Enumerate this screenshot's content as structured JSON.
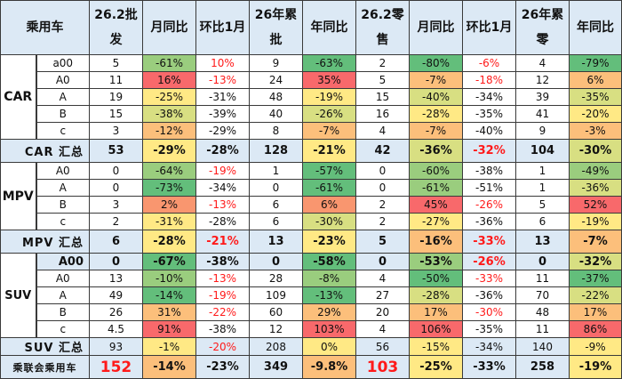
{
  "palette": {
    "G": "#63be7b",
    "g": "#9acd7e",
    "Y": "#d8df82",
    "y": "#ffe985",
    "o": "#fcbf7b",
    "O": "#f9966f",
    "R": "#f8696b",
    "header_bg": "#dce9f5",
    "red_text": "#ff1a1a"
  },
  "headers": [
    "乘用车",
    "26.2批发",
    "月同比",
    "环比1月",
    "26年累批",
    "年同比",
    "26.2零售",
    "月同比",
    "环比1月",
    "26年累零",
    "年同比"
  ],
  "groups": {
    "car": "CAR",
    "mpv": "MPV",
    "suv": "SUV"
  },
  "rows": [
    {
      "group": "car",
      "label": "a00",
      "cells": [
        [
          "5"
        ],
        [
          "-61%",
          "g"
        ],
        [
          "10%",
          "",
          "r"
        ],
        [
          "9"
        ],
        [
          "-63%",
          "G"
        ],
        [
          "2"
        ],
        [
          "-80%",
          "G"
        ],
        [
          "-6%",
          "",
          "r"
        ],
        [
          "4"
        ],
        [
          "-79%",
          "G"
        ]
      ]
    },
    {
      "group": "car",
      "label": "A0",
      "cells": [
        [
          "11"
        ],
        [
          "16%",
          "R"
        ],
        [
          "-13%",
          "",
          "r"
        ],
        [
          "24"
        ],
        [
          "35%",
          "R"
        ],
        [
          "5"
        ],
        [
          "-7%",
          "o"
        ],
        [
          "-18%",
          "",
          "r"
        ],
        [
          "12"
        ],
        [
          "6%",
          "o"
        ]
      ]
    },
    {
      "group": "car",
      "label": "A",
      "cells": [
        [
          "19"
        ],
        [
          "-25%",
          "y"
        ],
        [
          "-31%"
        ],
        [
          "48"
        ],
        [
          "-19%",
          "y"
        ],
        [
          "15"
        ],
        [
          "-40%",
          "Y"
        ],
        [
          "-34%"
        ],
        [
          "39"
        ],
        [
          "-35%",
          "Y"
        ]
      ]
    },
    {
      "group": "car",
      "label": "B",
      "cells": [
        [
          "15"
        ],
        [
          "-38%",
          "Y"
        ],
        [
          "-39%"
        ],
        [
          "40"
        ],
        [
          "-26%",
          "Y"
        ],
        [
          "16"
        ],
        [
          "-28%",
          "y"
        ],
        [
          "-35%"
        ],
        [
          "41"
        ],
        [
          "-20%",
          "y"
        ]
      ]
    },
    {
      "group": "car",
      "label": "c",
      "cells": [
        [
          "3"
        ],
        [
          "-12%",
          "o"
        ],
        [
          "-29%"
        ],
        [
          "8"
        ],
        [
          "-7%",
          "o"
        ],
        [
          "4"
        ],
        [
          "-7%",
          "o"
        ],
        [
          "-40%"
        ],
        [
          "9"
        ],
        [
          "-3%",
          "o"
        ]
      ]
    },
    {
      "summary": true,
      "bold": true,
      "label": "CAR 汇总",
      "cells": [
        [
          "53",
          "B"
        ],
        [
          "-29%",
          "y"
        ],
        [
          "-28%",
          "B"
        ],
        [
          "128",
          "B"
        ],
        [
          "-21%",
          "y"
        ],
        [
          "42",
          "B"
        ],
        [
          "-36%",
          "Y"
        ],
        [
          "-32%",
          "B",
          "r"
        ],
        [
          "104",
          "B"
        ],
        [
          "-30%",
          "Y"
        ]
      ]
    },
    {
      "group": "mpv",
      "label": "A0",
      "cells": [
        [
          "0"
        ],
        [
          "-64%",
          "g"
        ],
        [
          "-19%",
          "",
          "r"
        ],
        [
          "1"
        ],
        [
          "-57%",
          "G"
        ],
        [
          "0"
        ],
        [
          "-60%",
          "g"
        ],
        [
          "-38%"
        ],
        [
          "1"
        ],
        [
          "-49%",
          "g"
        ]
      ]
    },
    {
      "group": "mpv",
      "label": "A",
      "cells": [
        [
          "0"
        ],
        [
          "-73%",
          "G"
        ],
        [
          "-34%"
        ],
        [
          "0"
        ],
        [
          "-61%",
          "G"
        ],
        [
          "0"
        ],
        [
          "-61%",
          "g"
        ],
        [
          "-51%"
        ],
        [
          "1"
        ],
        [
          "-36%",
          "Y"
        ]
      ]
    },
    {
      "group": "mpv",
      "label": "B",
      "cells": [
        [
          "3"
        ],
        [
          "2%",
          "O"
        ],
        [
          "-13%",
          "",
          "r"
        ],
        [
          "6"
        ],
        [
          "6%",
          "O"
        ],
        [
          "2"
        ],
        [
          "45%",
          "R"
        ],
        [
          "-26%",
          "",
          "r"
        ],
        [
          "5"
        ],
        [
          "52%",
          "R"
        ]
      ]
    },
    {
      "group": "mpv",
      "label": "c",
      "cells": [
        [
          "2"
        ],
        [
          "-31%",
          "y"
        ],
        [
          "-28%"
        ],
        [
          "6"
        ],
        [
          "-30%",
          "Y"
        ],
        [
          "2"
        ],
        [
          "-27%",
          "y"
        ],
        [
          "-36%"
        ],
        [
          "6"
        ],
        [
          "-19%",
          "y"
        ]
      ]
    },
    {
      "summary": true,
      "bold": true,
      "label": "MPV 汇总",
      "cells": [
        [
          "6",
          "B"
        ],
        [
          "-28%",
          "y"
        ],
        [
          "-21%",
          "B",
          "r"
        ],
        [
          "13",
          "B"
        ],
        [
          "-23%",
          "y"
        ],
        [
          "5",
          "B"
        ],
        [
          "-16%",
          "o"
        ],
        [
          "-33%",
          "B",
          "r"
        ],
        [
          "13",
          "B"
        ],
        [
          "-7%",
          "o"
        ]
      ]
    },
    {
      "group": "suv",
      "label": "A00",
      "bold": true,
      "bluelabel": true,
      "cells": [
        [
          "0",
          "B"
        ],
        [
          "-67%",
          "G"
        ],
        [
          "-38%",
          "B"
        ],
        [
          "0",
          "B"
        ],
        [
          "-58%",
          "G"
        ],
        [
          "0",
          "B"
        ],
        [
          "-53%",
          "g"
        ],
        [
          "-26%",
          "B",
          "r"
        ],
        [
          "0",
          "B"
        ],
        [
          "-32%",
          "Y"
        ]
      ]
    },
    {
      "group": "suv",
      "label": "A0",
      "cells": [
        [
          "13"
        ],
        [
          "-10%",
          "g"
        ],
        [
          "-13%",
          "",
          "r"
        ],
        [
          "28"
        ],
        [
          "-8%",
          "g"
        ],
        [
          "4"
        ],
        [
          "-50%",
          "G"
        ],
        [
          "-33%",
          "",
          "r"
        ],
        [
          "11"
        ],
        [
          "-37%",
          "G"
        ]
      ]
    },
    {
      "group": "suv",
      "label": "A",
      "cells": [
        [
          "49"
        ],
        [
          "-14%",
          "G"
        ],
        [
          "-19%",
          "",
          "r"
        ],
        [
          "109"
        ],
        [
          "-13%",
          "G"
        ],
        [
          "27"
        ],
        [
          "-28%",
          "Y"
        ],
        [
          "-36%"
        ],
        [
          "70"
        ],
        [
          "-22%",
          "Y"
        ]
      ]
    },
    {
      "group": "suv",
      "label": "B",
      "cells": [
        [
          "26"
        ],
        [
          "31%",
          "o"
        ],
        [
          "-22%",
          "",
          "r"
        ],
        [
          "60"
        ],
        [
          "29%",
          "o"
        ],
        [
          "20"
        ],
        [
          "17%",
          "o"
        ],
        [
          "-30%",
          "",
          "r"
        ],
        [
          "48"
        ],
        [
          "17%",
          "o"
        ]
      ]
    },
    {
      "group": "suv",
      "label": "c",
      "cells": [
        [
          "4.5"
        ],
        [
          "91%",
          "R"
        ],
        [
          "-38%"
        ],
        [
          "12"
        ],
        [
          "103%",
          "R"
        ],
        [
          "4"
        ],
        [
          "106%",
          "R"
        ],
        [
          "-35%"
        ],
        [
          "11"
        ],
        [
          "86%",
          "R"
        ]
      ]
    },
    {
      "summary": true,
      "label": "SUV 汇总",
      "cells": [
        [
          "93",
          "B"
        ],
        [
          "-1%",
          "y"
        ],
        [
          "-20%",
          "B",
          "r"
        ],
        [
          "208",
          "B"
        ],
        [
          "0%",
          "y"
        ],
        [
          "56",
          "B"
        ],
        [
          "-15%",
          "y"
        ],
        [
          "-34%",
          "B"
        ],
        [
          "140",
          "B"
        ],
        [
          "-9%",
          "y"
        ]
      ]
    },
    {
      "summary": true,
      "bold": true,
      "total": true,
      "label": "乘联会乘用车",
      "cells": [
        [
          "152",
          "B",
          "r"
        ],
        [
          "-14%",
          "o"
        ],
        [
          "-23%",
          "B"
        ],
        [
          "349",
          "B"
        ],
        [
          "-9.8%",
          "o"
        ],
        [
          "103",
          "B",
          "r"
        ],
        [
          "-25%",
          "y"
        ],
        [
          "-33%",
          "B"
        ],
        [
          "258",
          "B"
        ],
        [
          "-19%",
          "y"
        ]
      ]
    }
  ]
}
